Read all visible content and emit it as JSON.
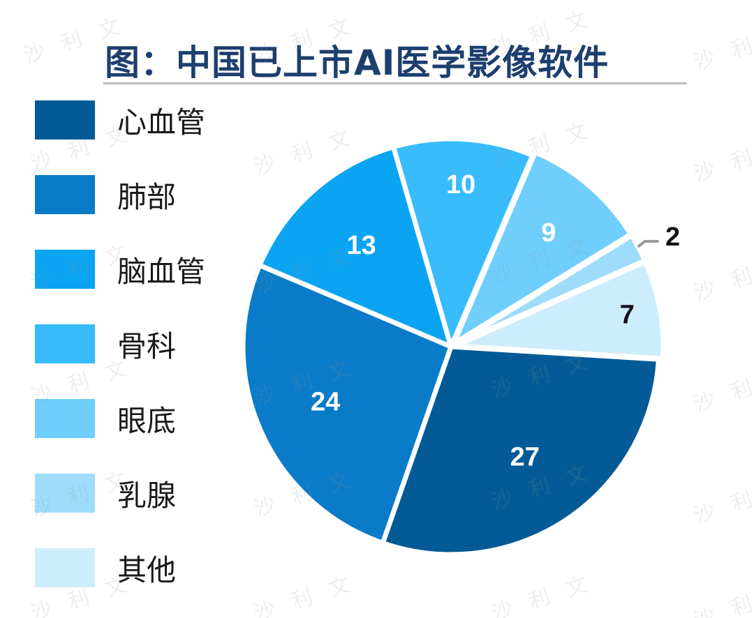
{
  "title": "图：中国已上市AI医学影像软件",
  "watermark_text": "沙利文",
  "chart_data": {
    "type": "pie",
    "title": "图：中国已上市AI医学影像软件",
    "legend_position": "left",
    "slices": [
      {
        "label": "心血管",
        "value": 27,
        "color": "#035a96"
      },
      {
        "label": "肺部",
        "value": 24,
        "color": "#0a7bc8"
      },
      {
        "label": "脑血管",
        "value": 13,
        "color": "#0aa4f2"
      },
      {
        "label": "骨科",
        "value": 10,
        "color": "#38bcfb"
      },
      {
        "label": "眼底",
        "value": 9,
        "color": "#6fcefc"
      },
      {
        "label": "乳腺",
        "value": 2,
        "color": "#9fdcfc"
      },
      {
        "label": "其他",
        "value": 7,
        "color": "#ccedfd"
      }
    ],
    "label_colors": {
      "inside_light": "#ffffff",
      "dark": "#111111",
      "leader_line": "#9a9a9a"
    }
  }
}
